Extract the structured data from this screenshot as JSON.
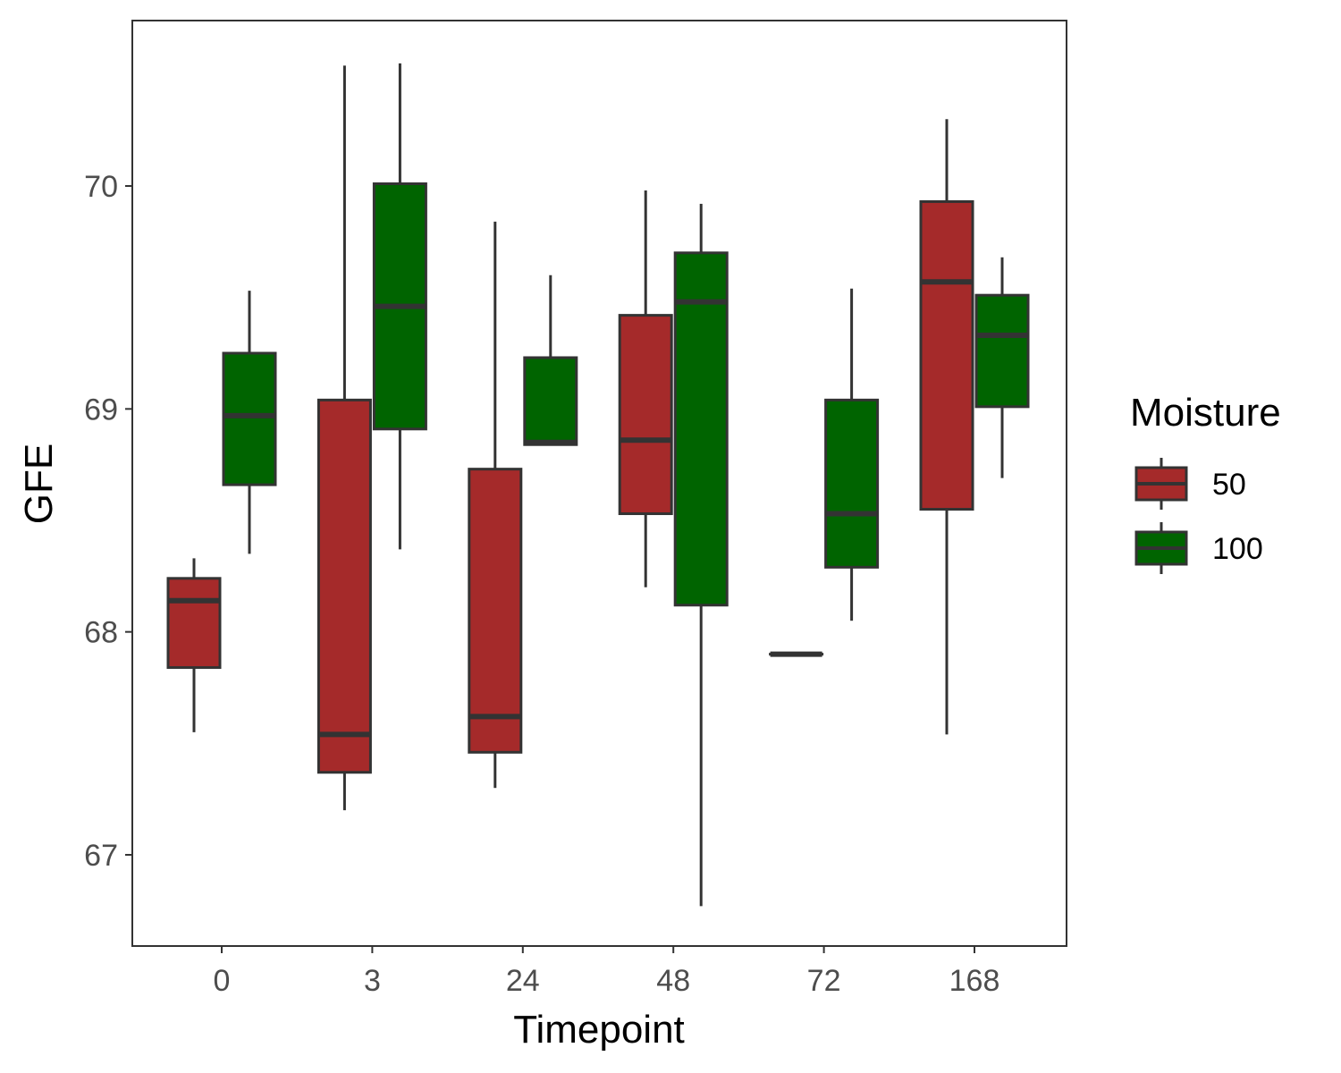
{
  "chart_data": {
    "type": "boxplot",
    "title": "",
    "xlabel": "Timepoint",
    "ylabel": "GFE",
    "categories": [
      "0",
      "3",
      "24",
      "48",
      "72",
      "168"
    ],
    "ylim": [
      66.6,
      70.75
    ],
    "yticks": [
      67,
      68,
      69,
      70
    ],
    "grid": false,
    "legend": {
      "title": "Moisture",
      "position": "right"
    },
    "series": [
      {
        "name": "50",
        "color": "#a52a2a",
        "boxes": [
          {
            "min": 67.55,
            "q1": 67.84,
            "median": 68.14,
            "q3": 68.24,
            "max": 68.33
          },
          {
            "min": 67.2,
            "q1": 67.37,
            "median": 67.54,
            "q3": 69.04,
            "max": 70.54
          },
          {
            "min": 67.3,
            "q1": 67.46,
            "median": 67.62,
            "q3": 68.73,
            "max": 69.84
          },
          {
            "min": 68.2,
            "q1": 68.53,
            "median": 68.86,
            "q3": 69.42,
            "max": 69.98
          },
          {
            "min": 67.9,
            "q1": 67.9,
            "median": 67.9,
            "q3": 67.9,
            "max": 67.9
          },
          {
            "min": 67.54,
            "q1": 68.55,
            "median": 69.57,
            "q3": 69.93,
            "max": 70.3
          }
        ]
      },
      {
        "name": "100",
        "color": "#006400",
        "boxes": [
          {
            "min": 68.35,
            "q1": 68.66,
            "median": 68.97,
            "q3": 69.25,
            "max": 69.53
          },
          {
            "min": 68.37,
            "q1": 68.91,
            "median": 69.46,
            "q3": 70.01,
            "max": 70.55
          },
          {
            "min": 68.84,
            "q1": 68.84,
            "median": 68.85,
            "q3": 69.23,
            "max": 69.6
          },
          {
            "min": 66.77,
            "q1": 68.12,
            "median": 69.48,
            "q3": 69.7,
            "max": 69.92
          },
          {
            "min": 68.05,
            "q1": 68.29,
            "median": 68.53,
            "q3": 69.04,
            "max": 69.54
          },
          {
            "min": 68.69,
            "q1": 69.01,
            "median": 69.33,
            "q3": 69.51,
            "max": 69.68
          }
        ]
      }
    ]
  },
  "colors": {
    "outline": "#333333",
    "panel_border": "#333333",
    "tick_text": "#4d4d4d"
  }
}
